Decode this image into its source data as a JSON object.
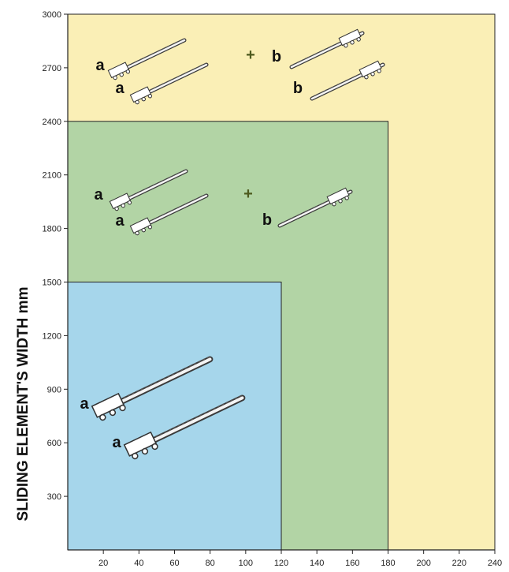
{
  "chart_data": {
    "type": "area",
    "ylabel": "SLIDING ELEMENT'S WIDTH  mm",
    "xlabel": "",
    "xlim": [
      0,
      240
    ],
    "ylim": [
      0,
      3000
    ],
    "x_ticks": [
      20,
      40,
      60,
      80,
      100,
      120,
      140,
      160,
      180,
      200,
      220,
      240
    ],
    "y_ticks": [
      300,
      600,
      900,
      1200,
      1500,
      1800,
      2100,
      2400,
      2700,
      3000
    ],
    "zones": [
      {
        "x_max": 240,
        "y_max": 3000,
        "color": "#faefb6",
        "slides": [
          "a",
          "a",
          "b",
          "b"
        ],
        "combiner": "+"
      },
      {
        "x_max": 180,
        "y_max": 2400,
        "color": "#b2d4a5",
        "slides": [
          "a",
          "a",
          "b"
        ],
        "combiner": "+"
      },
      {
        "x_max": 120,
        "y_max": 1500,
        "color": "#a6d6eb",
        "slides": [
          "a",
          "a"
        ],
        "combiner": ""
      }
    ]
  }
}
